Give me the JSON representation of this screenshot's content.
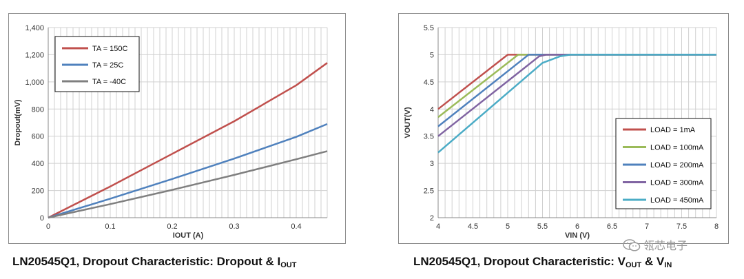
{
  "colors": {
    "red": "#c0504d",
    "blue": "#4f81bd",
    "gray": "#7f7f7f",
    "green": "#9bbb59",
    "purple": "#8064a2",
    "teal": "#4bacc6"
  },
  "chart_data": [
    {
      "type": "line",
      "xlabel": "IOUT (A)",
      "ylabel": "Dropout(mV)",
      "xlim": [
        0,
        0.45
      ],
      "ylim": [
        0,
        1400
      ],
      "xticks": [
        0,
        0.1,
        0.2,
        0.3,
        0.4
      ],
      "xtick_labels": [
        "0",
        "0.1",
        "0.2",
        "0.3",
        "0.4"
      ],
      "yticks": [
        0,
        200,
        400,
        600,
        800,
        1000,
        1200,
        1400
      ],
      "ytick_labels": [
        "0",
        "200",
        "400",
        "600",
        "800",
        "1,000",
        "1,200",
        "1,400"
      ],
      "grid": true,
      "legend_position": "top-left",
      "series": [
        {
          "name": "TA = 150C",
          "color": "#c0504d",
          "x": [
            0,
            0.1,
            0.2,
            0.3,
            0.4,
            0.45
          ],
          "y": [
            0,
            230,
            470,
            710,
            975,
            1140
          ]
        },
        {
          "name": "TA = 25C",
          "color": "#4f81bd",
          "x": [
            0,
            0.1,
            0.2,
            0.3,
            0.4,
            0.45
          ],
          "y": [
            0,
            140,
            285,
            435,
            595,
            690
          ]
        },
        {
          "name": "TA = -40C",
          "color": "#7f7f7f",
          "x": [
            0,
            0.1,
            0.2,
            0.3,
            0.4,
            0.45
          ],
          "y": [
            0,
            100,
            205,
            315,
            430,
            490
          ]
        }
      ]
    },
    {
      "type": "line",
      "xlabel": "VIN (V)",
      "ylabel": "VOUT(V)",
      "xlim": [
        4,
        8
      ],
      "ylim": [
        2,
        5.5
      ],
      "xticks": [
        4,
        4.5,
        5,
        5.5,
        6,
        6.5,
        7,
        7.5,
        8
      ],
      "xtick_labels": [
        "4",
        "4.5",
        "5",
        "5.5",
        "6",
        "6.5",
        "7",
        "7.5",
        "8"
      ],
      "yticks": [
        2,
        2.5,
        3,
        3.5,
        4,
        4.5,
        5,
        5.5
      ],
      "ytick_labels": [
        "2",
        "2.5",
        "3",
        "3.5",
        "4",
        "4.5",
        "5",
        "5.5"
      ],
      "grid": true,
      "legend_position": "bottom-right",
      "series": [
        {
          "name": "LOAD = 1mA",
          "color": "#c0504d",
          "x": [
            4,
            5.0,
            5.05,
            8
          ],
          "y": [
            4.0,
            5.0,
            5.0,
            5.0
          ]
        },
        {
          "name": "LOAD = 100mA",
          "color": "#9bbb59",
          "x": [
            4,
            5.15,
            5.2,
            8
          ],
          "y": [
            3.85,
            5.0,
            5.0,
            5.0
          ]
        },
        {
          "name": "LOAD = 200mA",
          "color": "#4f81bd",
          "x": [
            4,
            5.3,
            5.35,
            8
          ],
          "y": [
            3.68,
            5.0,
            5.0,
            5.0
          ]
        },
        {
          "name": "LOAD = 300mA",
          "color": "#8064a2",
          "x": [
            4,
            5.45,
            5.55,
            8
          ],
          "y": [
            3.5,
            4.97,
            5.0,
            5.0
          ]
        },
        {
          "name": "LOAD = 450mA",
          "color": "#4bacc6",
          "x": [
            4,
            5.5,
            5.75,
            5.9,
            8
          ],
          "y": [
            3.2,
            4.85,
            4.97,
            5.0,
            5.0
          ]
        }
      ]
    }
  ],
  "captions": {
    "left": {
      "main": "LN20545Q1, Dropout Characteristic: Dropout & I",
      "sub": "OUT"
    },
    "right": {
      "main": "LN20545Q1, Dropout Characteristic: V",
      "sub1": "OUT",
      "mid": " & V",
      "sub2": "IN"
    }
  },
  "watermark": {
    "text": "瓴芯电子",
    "icon": "wechat-icon"
  }
}
